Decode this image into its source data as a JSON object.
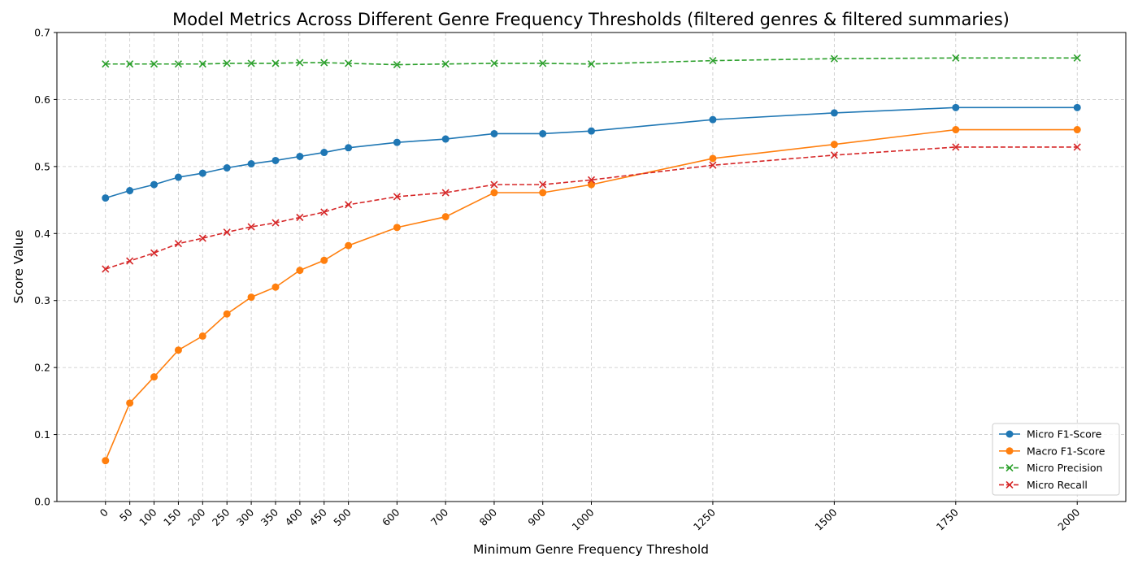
{
  "chart_data": {
    "type": "line",
    "title": "Model Metrics Across Different Genre Frequency Thresholds (filtered genres & filtered summaries)",
    "xlabel": "Minimum Genre Frequency Threshold",
    "ylabel": "Score Value",
    "x": [
      0,
      50,
      100,
      150,
      200,
      250,
      300,
      350,
      400,
      450,
      500,
      600,
      700,
      800,
      900,
      1000,
      1250,
      1500,
      1750,
      2000
    ],
    "x_tick_labels": [
      "0",
      "50",
      "100",
      "150",
      "200",
      "250",
      "300",
      "350",
      "400",
      "450",
      "500",
      "600",
      "700",
      "800",
      "900",
      "1000",
      "1250",
      "1500",
      "1750",
      "2000"
    ],
    "xlim": [
      -100,
      2100
    ],
    "ylim": [
      0.0,
      0.7
    ],
    "y_ticks": [
      0.0,
      0.1,
      0.2,
      0.3,
      0.4,
      0.5,
      0.6,
      0.7
    ],
    "y_tick_labels": [
      "0.0",
      "0.1",
      "0.2",
      "0.3",
      "0.4",
      "0.5",
      "0.6",
      "0.7"
    ],
    "grid": true,
    "legend_position": "bottom-right",
    "series": [
      {
        "name": "Micro F1-Score",
        "color": "#1f77b4",
        "line_style": "solid",
        "marker": "circle",
        "values": [
          0.453,
          0.464,
          0.473,
          0.484,
          0.49,
          0.498,
          0.504,
          0.509,
          0.515,
          0.521,
          0.528,
          0.536,
          0.541,
          0.549,
          0.549,
          0.553,
          0.57,
          0.58,
          0.588,
          0.588
        ]
      },
      {
        "name": "Macro F1-Score",
        "color": "#ff7f0e",
        "line_style": "solid",
        "marker": "circle",
        "values": [
          0.061,
          0.147,
          0.186,
          0.226,
          0.247,
          0.28,
          0.305,
          0.32,
          0.345,
          0.36,
          0.382,
          0.409,
          0.425,
          0.461,
          0.461,
          0.473,
          0.512,
          0.533,
          0.555,
          0.555
        ]
      },
      {
        "name": "Micro Precision",
        "color": "#2ca02c",
        "line_style": "dashed",
        "marker": "x",
        "values": [
          0.653,
          0.653,
          0.653,
          0.653,
          0.653,
          0.654,
          0.654,
          0.654,
          0.655,
          0.655,
          0.654,
          0.652,
          0.653,
          0.654,
          0.654,
          0.653,
          0.658,
          0.661,
          0.662,
          0.662
        ]
      },
      {
        "name": "Micro Recall",
        "color": "#d62728",
        "line_style": "dashed",
        "marker": "x",
        "values": [
          0.347,
          0.359,
          0.371,
          0.385,
          0.393,
          0.402,
          0.41,
          0.416,
          0.424,
          0.432,
          0.443,
          0.455,
          0.461,
          0.473,
          0.473,
          0.48,
          0.502,
          0.517,
          0.529,
          0.529
        ]
      }
    ]
  }
}
